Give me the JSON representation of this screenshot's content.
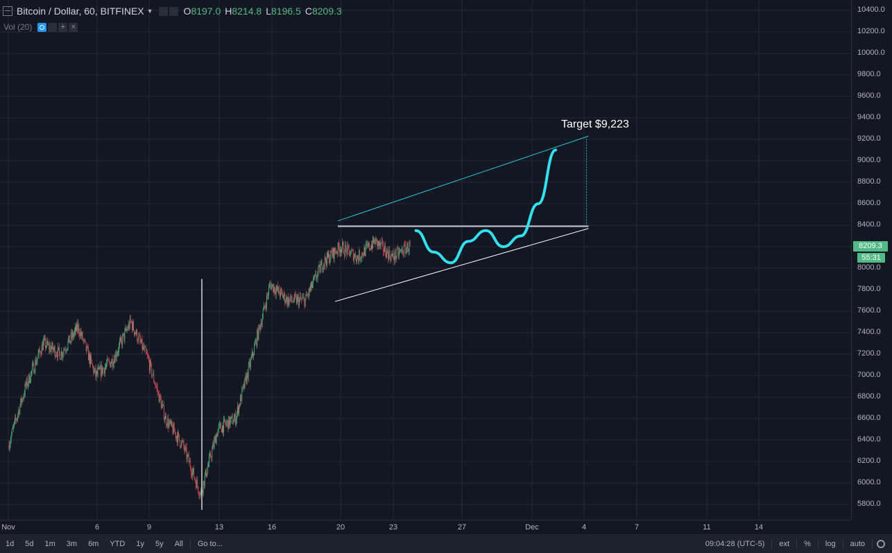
{
  "header": {
    "symbol": "Bitcoin / Dollar, 60, BITFINEX",
    "ohlc": [
      {
        "k": "O",
        "v": "8197.0"
      },
      {
        "k": "H",
        "v": "8214.8"
      },
      {
        "k": "L",
        "v": "8196.5"
      },
      {
        "k": "C",
        "v": "8209.3"
      }
    ]
  },
  "volume_indicator": {
    "label": "Vol (20)"
  },
  "annotation": {
    "target_text": "Target $9,223"
  },
  "price_axis": {
    "ticks": [
      "10400.0",
      "10200.0",
      "10000.0",
      "9800.0",
      "9600.0",
      "9400.0",
      "9200.0",
      "9000.0",
      "8800.0",
      "8600.0",
      "8400.0",
      "8200.0",
      "8000.0",
      "7800.0",
      "7600.0",
      "7400.0",
      "7200.0",
      "7000.0",
      "6800.0",
      "6600.0",
      "6400.0",
      "6200.0",
      "6000.0",
      "5800.0"
    ],
    "current_price": "8209.3",
    "countdown": "55:31"
  },
  "time_axis": {
    "labels": [
      "Nov",
      "6",
      "9",
      "13",
      "16",
      "20",
      "23",
      "27",
      "Dec",
      "4",
      "7",
      "11",
      "14"
    ]
  },
  "toolbar": {
    "ranges": [
      "1d",
      "5d",
      "1m",
      "3m",
      "6m",
      "YTD",
      "1y",
      "5y",
      "All"
    ],
    "goto": "Go to...",
    "clock": "09:04:28 (UTC-5)",
    "ext": "ext",
    "percent": "%",
    "log": "log",
    "auto": "auto"
  },
  "colors": {
    "background": "#131722",
    "up": "#53b987",
    "down": "#eb4d5c",
    "channel_upper": "#26c6da",
    "projection": "#33e0f0",
    "support": "#ffffff"
  },
  "chart_data": {
    "type": "candlestick",
    "title": "Bitcoin / Dollar, 60, BITFINEX",
    "xlabel": "",
    "ylabel": "",
    "ylim": [
      5700,
      10500
    ],
    "x_range": [
      "Nov 1",
      "Dec 17"
    ],
    "x_ticks": [
      "Nov",
      "6",
      "9",
      "13",
      "16",
      "20",
      "23",
      "27",
      "Dec",
      "4",
      "7",
      "11",
      "14"
    ],
    "grid": true,
    "last_candle": {
      "open": 8197.0,
      "high": 8214.8,
      "low": 8196.5,
      "close": 8209.3
    },
    "price_path_approx": [
      {
        "date": "Nov 1",
        "price": 6350
      },
      {
        "date": "Nov 2",
        "price": 6900
      },
      {
        "date": "Nov 3",
        "price": 7300
      },
      {
        "date": "Nov 4",
        "price": 7200
      },
      {
        "date": "Nov 5",
        "price": 7450
      },
      {
        "date": "Nov 6",
        "price": 7000
      },
      {
        "date": "Nov 7",
        "price": 7150
      },
      {
        "date": "Nov 8",
        "price": 7500
      },
      {
        "date": "Nov 9",
        "price": 7150
      },
      {
        "date": "Nov 10",
        "price": 6600
      },
      {
        "date": "Nov 11",
        "price": 6350
      },
      {
        "date": "Nov 12",
        "price": 5900
      },
      {
        "date": "Nov 13",
        "price": 6500
      },
      {
        "date": "Nov 14",
        "price": 6600
      },
      {
        "date": "Nov 15",
        "price": 7200
      },
      {
        "date": "Nov 16",
        "price": 7850
      },
      {
        "date": "Nov 17",
        "price": 7700
      },
      {
        "date": "Nov 18",
        "price": 7700
      },
      {
        "date": "Nov 19",
        "price": 8050
      },
      {
        "date": "Nov 20",
        "price": 8200
      },
      {
        "date": "Nov 21",
        "price": 8100
      },
      {
        "date": "Nov 22",
        "price": 8250
      },
      {
        "date": "Nov 23",
        "price": 8100
      },
      {
        "date": "Nov 24",
        "price": 8209
      }
    ],
    "drawings": [
      {
        "kind": "trendline",
        "name": "upper-channel",
        "from": {
          "date": "Nov 20",
          "price": 8440
        },
        "to": {
          "date": "Dec 4",
          "price": 9230
        }
      },
      {
        "kind": "trendline",
        "name": "resistance",
        "from": {
          "date": "Nov 20",
          "price": 8390
        },
        "to": {
          "date": "Dec 4",
          "price": 8390
        }
      },
      {
        "kind": "trendline",
        "name": "support",
        "from": {
          "date": "Nov 20",
          "price": 7690
        },
        "to": {
          "date": "Dec 4",
          "price": 8370
        }
      },
      {
        "kind": "projection",
        "name": "projected-path",
        "points": [
          {
            "date": "Nov 24",
            "price": 8350
          },
          {
            "date": "Nov 25",
            "price": 8150
          },
          {
            "date": "Nov 26",
            "price": 8050
          },
          {
            "date": "Nov 27",
            "price": 8250
          },
          {
            "date": "Nov 28",
            "price": 8350
          },
          {
            "date": "Nov 29",
            "price": 8200
          },
          {
            "date": "Nov 30",
            "price": 8300
          },
          {
            "date": "Dec 1",
            "price": 8600
          },
          {
            "date": "Dec 2",
            "price": 9100
          }
        ]
      },
      {
        "kind": "vertical-measure",
        "name": "target-measure",
        "date": "Dec 4",
        "from_price": 8390,
        "to_price": 9223
      }
    ],
    "annotations": [
      {
        "text": "Target $9,223",
        "date": "Dec 3",
        "price": 9300
      }
    ]
  }
}
